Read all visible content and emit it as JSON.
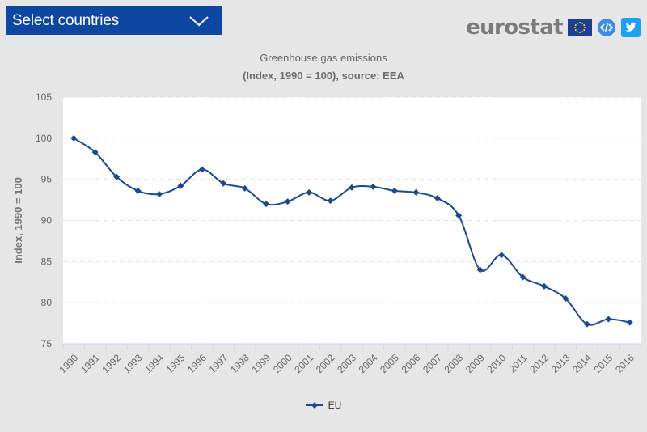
{
  "header": {
    "select_label": "Select countries",
    "brand_text": "eurostat"
  },
  "icons": {
    "dropdown": "chevron-down-icon",
    "flag": "eu-flag-icon",
    "embed": "code-embed-icon",
    "share": "twitter-icon"
  },
  "colors": {
    "select_bg": "#0e47a1",
    "series_line": "#1a4a8f",
    "plot_bg": "#ffffff",
    "page_bg": "#e6e6e6",
    "embed_icon": "#3a8ee6",
    "twitter_icon": "#1da1f2"
  },
  "chart_data": {
    "type": "line",
    "title": "Greenhouse gas emissions",
    "subtitle": "(Index, 1990 = 100), source: EEA",
    "xlabel": "",
    "ylabel": "Index, 1990 = 100",
    "ylim": [
      75,
      105
    ],
    "yticks": [
      75,
      80,
      85,
      90,
      95,
      100,
      105
    ],
    "grid": true,
    "legend_position": "bottom-center",
    "categories": [
      "1990",
      "1991",
      "1992",
      "1993",
      "1994",
      "1995",
      "1996",
      "1997",
      "1998",
      "1999",
      "2000",
      "2001",
      "2002",
      "2003",
      "2004",
      "2005",
      "2006",
      "2007",
      "2008",
      "2009",
      "2010",
      "2011",
      "2012",
      "2013",
      "2014",
      "2015",
      "2016"
    ],
    "series": [
      {
        "name": "EU",
        "values": [
          100.0,
          98.3,
          95.3,
          93.6,
          93.2,
          94.2,
          96.2,
          94.5,
          93.9,
          92.0,
          92.3,
          93.4,
          92.4,
          94.0,
          94.1,
          93.6,
          93.4,
          92.7,
          90.6,
          84.0,
          85.8,
          83.1,
          82.0,
          80.5,
          77.4,
          78.0,
          77.6
        ]
      }
    ]
  }
}
